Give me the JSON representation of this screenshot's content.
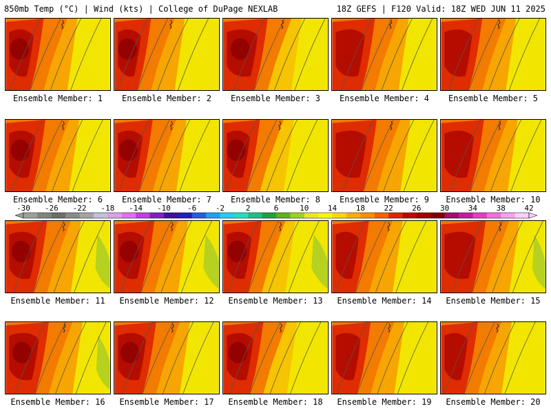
{
  "header": {
    "left": "850mb Temp (°C) | Wind (kts) | College of DuPage NEXLAB",
    "right": "18Z GEFS | F120 Valid: 18Z WED JUN 11 2025"
  },
  "panel_label_prefix": "Ensemble Member:",
  "members": [
    {
      "label": "Ensemble Member: 1"
    },
    {
      "label": "Ensemble Member: 2"
    },
    {
      "label": "Ensemble Member: 3"
    },
    {
      "label": "Ensemble Member: 4"
    },
    {
      "label": "Ensemble Member: 5"
    },
    {
      "label": "Ensemble Member: 6"
    },
    {
      "label": "Ensemble Member: 7"
    },
    {
      "label": "Ensemble Member: 8"
    },
    {
      "label": "Ensemble Member: 9"
    },
    {
      "label": "Ensemble Member: 10"
    },
    {
      "label": "Ensemble Member: 11"
    },
    {
      "label": "Ensemble Member: 12"
    },
    {
      "label": "Ensemble Member: 13"
    },
    {
      "label": "Ensemble Member: 14"
    },
    {
      "label": "Ensemble Member: 15"
    },
    {
      "label": "Ensemble Member: 16"
    },
    {
      "label": "Ensemble Member: 17"
    },
    {
      "label": "Ensemble Member: 18"
    },
    {
      "label": "Ensemble Member: 19"
    },
    {
      "label": "Ensemble Member: 20"
    }
  ],
  "colorbar": {
    "tick_labels": [
      "-30",
      "-26",
      "-22",
      "-18",
      "-14",
      "-10",
      "-6",
      "-2",
      "2",
      "6",
      "10",
      "14",
      "18",
      "22",
      "26",
      "30",
      "34",
      "38",
      "42"
    ],
    "colors": [
      "#9aa39a",
      "#7d877d",
      "#6b6f6b",
      "#8a8a8a",
      "#a3a3a3",
      "#c0c0d8",
      "#d8a0e8",
      "#e070f0",
      "#c040e0",
      "#8020c0",
      "#4010a0",
      "#2020c0",
      "#2060e0",
      "#20a0f0",
      "#20d0f0",
      "#20e0c0",
      "#20c080",
      "#20a040",
      "#60b020",
      "#a0d020",
      "#e8e820",
      "#f8f800",
      "#f8d800",
      "#f8b000",
      "#f89000",
      "#f86000",
      "#e82000",
      "#c80000",
      "#a00000",
      "#800000",
      "#a01070",
      "#c020a0",
      "#e040c0",
      "#f070e0",
      "#f8a0f0",
      "#f8d0f8"
    ]
  },
  "palette": {
    "yellow": "#f2e600",
    "yellow_orange": "#f6c400",
    "orange": "#f7a500",
    "orange_red": "#f27b00",
    "red_orange": "#ec5a00",
    "red": "#df2c00",
    "deep_red": "#b50c00",
    "maroon": "#8c0000",
    "green_yellow": "#b6d11f"
  }
}
